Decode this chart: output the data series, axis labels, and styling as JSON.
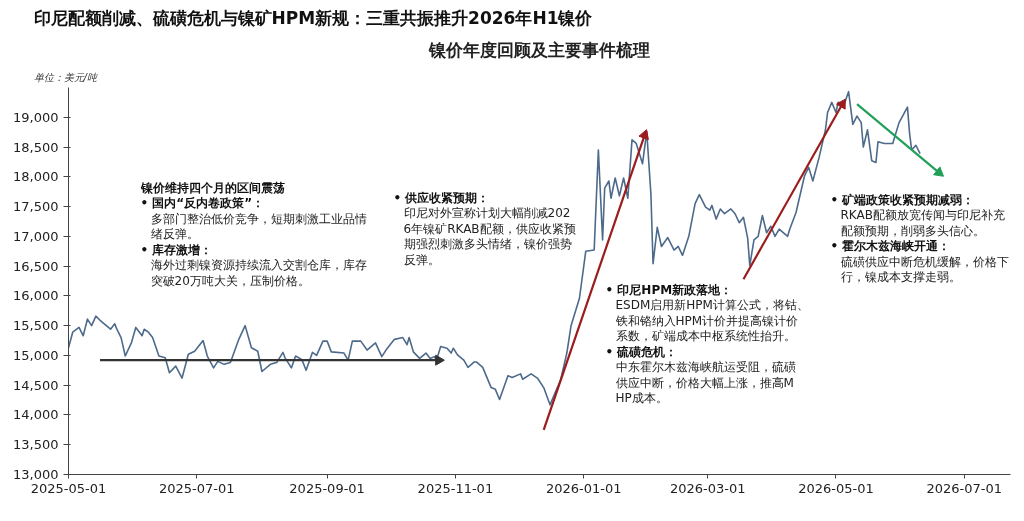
{
  "chart_data": {
    "type": "line",
    "title": "印尼配额削减、硫磺危机与镍矿HPM新规：三重共振推升2026年H1镍价",
    "subtitle": "镍价年度回顾及主要事件梳理",
    "ylabel": "单位：美元/吨",
    "annotations": [
      "镍价维持四个月的区间震荡",
      "• 国内“反内卷政策”：多部门整治低价竞争，短期刺激工业品情绪反弹。",
      "• 库存激增：海外过剩镍资源持续流入交割仓库，库存突破20万吨大关，压制价格。",
      "• 供应收紧预期：印尼对外宣称计划大幅削减2026年镍矿RKAB配额，供应收紧预期强烈刺激多头情绪，镍价强势反弹。",
      "• 印尼HPM新政落地：ESDM启用新HPM计算公式，将钴、铁和铬纳入HPM计价并提高镍计价系数，矿端成本中枢系统性抬升。",
      "• 硫磺危机：中东霍尔木兹海峡航运受阻，硫磺供应中断，价格大幅上涨，推高MHP成本。",
      "• 矿端政策收紧预期减弱：RKAB配额放宽传闻与印尼补充配额预期，削弱多头信心。",
      "• 霍尔木兹海峡开通：硫磺供应中断危机缓解，价格下行，镍成本支撑走弱。"
    ],
    "xlim": [
      "2025-05-01",
      "2026-07-23"
    ],
    "ylim": [
      13000,
      19500
    ],
    "xticks": [
      "2025-05-01",
      "2025-07-01",
      "2025-09-01",
      "2025-11-01",
      "2026-01-01",
      "2026-03-01",
      "2026-05-01",
      "2026-07-01"
    ],
    "yticks": [
      {
        "value": 13000,
        "label": "13,000"
      },
      {
        "value": 13500,
        "label": "13,500"
      },
      {
        "value": 14000,
        "label": "14,000"
      },
      {
        "value": 14500,
        "label": "14,500"
      },
      {
        "value": 15000,
        "label": "15,000"
      },
      {
        "value": 15500,
        "label": "15,500"
      },
      {
        "value": 16000,
        "label": "16,000"
      },
      {
        "value": 16500,
        "label": "16,500"
      },
      {
        "value": 17000,
        "label": "17,000"
      },
      {
        "value": 17500,
        "label": "17,500"
      },
      {
        "value": 18000,
        "label": "18,000"
      },
      {
        "value": 18500,
        "label": "18,500"
      },
      {
        "value": 19000,
        "label": "19,000"
      }
    ],
    "grid": false,
    "series": [
      {
        "color": "#4d6a8a",
        "x": [
          "2025-05-01",
          "2025-05-03",
          "2025-05-06",
          "2025-05-08",
          "2025-05-10",
          "2025-05-12",
          "2025-05-14",
          "2025-05-16",
          "2025-05-19",
          "2025-05-21",
          "2025-05-23",
          "2025-05-24",
          "2025-05-26",
          "2025-05-28",
          "2025-05-31",
          "2025-06-02",
          "2025-06-05",
          "2025-06-06",
          "2025-06-08",
          "2025-06-10",
          "2025-06-13",
          "2025-06-16",
          "2025-06-18",
          "2025-06-21",
          "2025-06-24",
          "2025-06-27",
          "2025-06-30",
          "2025-07-04",
          "2025-07-06",
          "2025-07-09",
          "2025-07-11",
          "2025-07-14",
          "2025-07-17",
          "2025-07-21",
          "2025-07-24",
          "2025-07-27",
          "2025-07-30",
          "2025-08-01",
          "2025-08-05",
          "2025-08-08",
          "2025-08-11",
          "2025-08-12",
          "2025-08-15",
          "2025-08-17",
          "2025-08-20",
          "2025-08-22",
          "2025-08-25",
          "2025-08-27",
          "2025-08-30",
          "2025-09-01",
          "2025-09-03",
          "2025-09-09",
          "2025-09-11",
          "2025-09-13",
          "2025-09-17",
          "2025-09-20",
          "2025-09-24",
          "2025-09-27",
          "2025-09-29",
          "2025-10-03",
          "2025-10-07",
          "2025-10-09",
          "2025-10-10",
          "2025-10-12",
          "2025-10-15",
          "2025-10-18",
          "2025-10-20",
          "2025-10-22",
          "2025-10-23",
          "2025-10-25",
          "2025-10-28",
          "2025-10-30",
          "2025-10-31",
          "2025-11-02",
          "2025-11-05",
          "2025-11-07",
          "2025-11-10",
          "2025-11-11",
          "2025-11-14",
          "2025-11-18",
          "2025-11-20",
          "2025-11-22",
          "2025-11-26",
          "2025-11-28",
          "2025-12-02",
          "2025-12-03",
          "2025-12-07",
          "2025-12-10",
          "2025-12-13",
          "2025-12-16",
          "2025-12-18",
          "2025-12-21",
          "2025-12-24",
          "2025-12-26",
          "2025-12-30",
          "2026-01-02",
          "2026-01-06",
          "2026-01-08",
          "2026-01-10",
          "2026-01-11",
          "2026-01-13",
          "2026-01-14",
          "2026-01-16",
          "2026-01-18",
          "2026-01-20",
          "2026-01-22",
          "2026-01-24",
          "2026-01-26",
          "2026-01-29",
          "2026-01-31",
          "2026-02-02",
          "2026-02-03",
          "2026-02-05",
          "2026-02-07",
          "2026-02-10",
          "2026-02-13",
          "2026-02-15",
          "2026-02-17",
          "2026-02-20",
          "2026-02-23",
          "2026-02-25",
          "2026-02-28",
          "2026-03-02",
          "2026-03-03",
          "2026-03-05",
          "2026-03-07",
          "2026-03-09",
          "2026-03-12",
          "2026-03-14",
          "2026-03-16",
          "2026-03-18",
          "2026-03-20",
          "2026-03-21",
          "2026-03-23",
          "2026-03-25",
          "2026-03-27",
          "2026-03-29",
          "2026-03-31",
          "2026-04-02",
          "2026-04-04",
          "2026-04-08",
          "2026-04-09",
          "2026-04-12",
          "2026-04-16",
          "2026-04-18",
          "2026-04-20",
          "2026-04-23",
          "2026-04-26",
          "2026-04-27",
          "2026-04-29",
          "2026-05-01",
          "2026-05-02",
          "2026-05-05",
          "2026-05-07",
          "2026-05-09",
          "2026-05-11",
          "2026-05-13",
          "2026-05-14",
          "2026-05-16",
          "2026-05-18",
          "2026-05-20",
          "2026-05-21",
          "2026-05-24",
          "2026-05-28",
          "2026-05-31",
          "2026-06-04",
          "2026-06-05",
          "2026-06-06",
          "2026-06-08",
          "2026-06-10"
        ],
        "values": [
          15130,
          15390,
          15470,
          15330,
          15610,
          15500,
          15660,
          15590,
          15500,
          15440,
          15530,
          15440,
          15300,
          14990,
          15220,
          15470,
          15330,
          15440,
          15390,
          15300,
          14990,
          14960,
          14710,
          14820,
          14620,
          15020,
          15070,
          15250,
          14990,
          14790,
          14900,
          14850,
          14880,
          15270,
          15500,
          15130,
          15070,
          14730,
          14850,
          14880,
          15050,
          14960,
          14790,
          14990,
          14930,
          14750,
          15050,
          15000,
          15240,
          15240,
          15060,
          15040,
          14920,
          15240,
          15240,
          15090,
          15210,
          14980,
          15090,
          15270,
          15300,
          15180,
          15300,
          15060,
          14950,
          15040,
          14950,
          14980,
          14920,
          15150,
          15120,
          15040,
          15120,
          15010,
          14920,
          14800,
          14890,
          14890,
          14800,
          14460,
          14430,
          14260,
          14660,
          14630,
          14690,
          14600,
          14690,
          14620,
          14460,
          14170,
          14340,
          14580,
          15040,
          15500,
          15960,
          16750,
          16770,
          18450,
          16940,
          17810,
          17930,
          17640,
          17980,
          17680,
          17980,
          17640,
          18620,
          18560,
          18220,
          18760,
          17700,
          16540,
          17150,
          16830,
          16980,
          16770,
          16830,
          16680,
          17000,
          17550,
          17700,
          17490,
          17440,
          17520,
          17290,
          17460,
          17380,
          17460,
          17380,
          17230,
          17320,
          16970,
          16510,
          16940,
          17000,
          17350,
          17060,
          17170,
          17000,
          17120,
          17000,
          17120,
          17400,
          18010,
          18160,
          17930,
          18330,
          18790,
          19080,
          19250,
          19080,
          19250,
          19230,
          19430,
          18880,
          19020,
          18910,
          18500,
          18790,
          18270,
          18240,
          18590,
          18560,
          18560,
          18910,
          19170,
          18730,
          18450,
          18530,
          18390
        ]
      },
      {
        "type": "line",
        "color": "#333333",
        "x": [
          "2025-05-16",
          "2025-10-24"
        ],
        "values": [
          14920,
          14920
        ]
      },
      {
        "type": "line",
        "color": "#9b1c1c",
        "x": [
          "2025-12-13",
          "2026-01-30"
        ],
        "values": [
          13750,
          18700
        ]
      },
      {
        "type": "line",
        "color": "#9b1c1c",
        "x": [
          "2026-03-18",
          "2026-05-04"
        ],
        "values": [
          16280,
          19220
        ]
      },
      {
        "type": "line",
        "color": "#22a05a",
        "x": [
          "2026-05-11",
          "2026-06-19"
        ],
        "values": [
          19220,
          18070
        ]
      }
    ]
  }
}
